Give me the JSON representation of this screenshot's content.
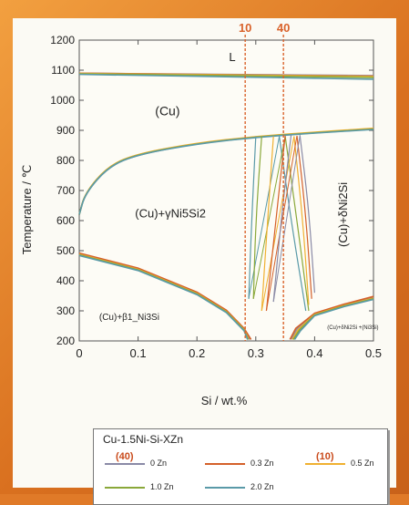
{
  "chart_data": {
    "type": "line",
    "xlabel": "Si / wt.%",
    "ylabel": "Temperature / ℃",
    "xlim": [
      0,
      0.5
    ],
    "ylim": [
      200,
      1200
    ],
    "x_ticks": [
      "0",
      "0.1",
      "0.2",
      "0.3",
      "0.4",
      "0.5"
    ],
    "y_ticks": [
      "200",
      "300",
      "400",
      "500",
      "600",
      "700",
      "800",
      "900",
      "1000",
      "1100",
      "1200"
    ],
    "vertical_markers": [
      {
        "label": "10",
        "x": 0.282
      },
      {
        "label": "40",
        "x": 0.347
      }
    ],
    "region_labels": [
      {
        "text": "L"
      },
      {
        "text": "(Cu)"
      },
      {
        "text": "(Cu)+γNi5Si2"
      },
      {
        "text": "(Cu)+δNi2Si"
      },
      {
        "text": "(Cu)+β1_Ni3Si"
      },
      {
        "text": "(Cu)+δNi2Si +(Ni3Si)"
      }
    ],
    "legend": {
      "title": "Cu-1.5Ni-Si-XZn",
      "placement": "bottom"
    },
    "series": [
      {
        "name": "0 Zn",
        "marker": "(40)",
        "color": "#8a8aa6",
        "liquidus": [
          [
            0,
            1090
          ],
          [
            0.5,
            1082
          ]
        ],
        "solvus": [
          [
            0,
            620
          ],
          [
            0.01,
            690
          ],
          [
            0.05,
            780
          ],
          [
            0.1,
            820
          ],
          [
            0.2,
            856
          ],
          [
            0.3,
            878
          ],
          [
            0.4,
            892
          ],
          [
            0.5,
            905
          ]
        ],
        "lower_left": [
          [
            0,
            490
          ],
          [
            0.1,
            440
          ],
          [
            0.2,
            360
          ],
          [
            0.25,
            300
          ],
          [
            0.28,
            240
          ],
          [
            0.29,
            205
          ]
        ],
        "lower_right": [
          [
            0.36,
            205
          ],
          [
            0.37,
            240
          ],
          [
            0.4,
            290
          ],
          [
            0.45,
            320
          ],
          [
            0.5,
            345
          ]
        ]
      },
      {
        "name": "0.3 Zn",
        "color": "#d4602a",
        "liquidus": [
          [
            0,
            1090
          ],
          [
            0.5,
            1080
          ]
        ],
        "solvus": [
          [
            0,
            620
          ],
          [
            0.01,
            692
          ],
          [
            0.05,
            782
          ],
          [
            0.1,
            822
          ],
          [
            0.2,
            857
          ],
          [
            0.3,
            879
          ],
          [
            0.4,
            893
          ],
          [
            0.5,
            906
          ]
        ],
        "lower_left": [
          [
            0,
            492
          ],
          [
            0.1,
            442
          ],
          [
            0.2,
            362
          ],
          [
            0.25,
            302
          ],
          [
            0.28,
            242
          ],
          [
            0.292,
            205
          ]
        ],
        "lower_right": [
          [
            0.358,
            205
          ],
          [
            0.368,
            242
          ],
          [
            0.4,
            292
          ],
          [
            0.45,
            322
          ],
          [
            0.5,
            348
          ]
        ]
      },
      {
        "name": "0.5 Zn",
        "marker": "(10)",
        "color": "#f0b030",
        "liquidus": [
          [
            0,
            1089
          ],
          [
            0.5,
            1079
          ]
        ],
        "solvus": [
          [
            0,
            620
          ],
          [
            0.01,
            693
          ],
          [
            0.05,
            783
          ],
          [
            0.1,
            823
          ],
          [
            0.2,
            858
          ],
          [
            0.3,
            880
          ],
          [
            0.4,
            894
          ],
          [
            0.5,
            907
          ]
        ],
        "lower_left": [
          [
            0,
            488
          ],
          [
            0.1,
            438
          ],
          [
            0.2,
            358
          ],
          [
            0.25,
            298
          ],
          [
            0.28,
            238
          ],
          [
            0.288,
            205
          ]
        ],
        "lower_right": [
          [
            0.362,
            205
          ],
          [
            0.372,
            238
          ],
          [
            0.4,
            288
          ],
          [
            0.45,
            318
          ],
          [
            0.5,
            342
          ]
        ]
      },
      {
        "name": "1.0 Zn",
        "color": "#8aa83a",
        "liquidus": [
          [
            0,
            1088
          ],
          [
            0.5,
            1076
          ]
        ],
        "solvus": [
          [
            0,
            620
          ],
          [
            0.01,
            691
          ],
          [
            0.05,
            781
          ],
          [
            0.1,
            821
          ],
          [
            0.2,
            856
          ],
          [
            0.3,
            878
          ],
          [
            0.4,
            892
          ],
          [
            0.5,
            904
          ]
        ],
        "lower_left": [
          [
            0,
            486
          ],
          [
            0.1,
            436
          ],
          [
            0.2,
            356
          ],
          [
            0.25,
            296
          ],
          [
            0.28,
            236
          ],
          [
            0.287,
            205
          ]
        ],
        "lower_right": [
          [
            0.364,
            205
          ],
          [
            0.374,
            236
          ],
          [
            0.4,
            286
          ],
          [
            0.45,
            316
          ],
          [
            0.5,
            340
          ]
        ]
      },
      {
        "name": "2.0 Zn",
        "color": "#5a9aa8",
        "liquidus": [
          [
            0,
            1086
          ],
          [
            0.5,
            1070
          ]
        ],
        "solvus": [
          [
            0,
            620
          ],
          [
            0.01,
            690
          ],
          [
            0.05,
            780
          ],
          [
            0.1,
            820
          ],
          [
            0.2,
            855
          ],
          [
            0.3,
            877
          ],
          [
            0.4,
            891
          ],
          [
            0.5,
            903
          ]
        ],
        "lower_left": [
          [
            0,
            484
          ],
          [
            0.1,
            434
          ],
          [
            0.2,
            354
          ],
          [
            0.25,
            294
          ],
          [
            0.28,
            234
          ],
          [
            0.286,
            205
          ]
        ],
        "lower_right": [
          [
            0.366,
            205
          ],
          [
            0.376,
            234
          ],
          [
            0.4,
            284
          ],
          [
            0.45,
            314
          ],
          [
            0.5,
            338
          ]
        ]
      }
    ],
    "lens_curves": [
      {
        "color": "#5a9aa8",
        "pts": [
          [
            0.3,
            880
          ],
          [
            0.293,
            600
          ],
          [
            0.288,
            340
          ],
          [
            0.34,
            880
          ],
          [
            0.36,
            600
          ],
          [
            0.385,
            300
          ]
        ]
      },
      {
        "color": "#8aa83a",
        "pts": [
          [
            0.31,
            880
          ],
          [
            0.3,
            600
          ],
          [
            0.296,
            340
          ],
          [
            0.35,
            880
          ],
          [
            0.37,
            600
          ],
          [
            0.39,
            300
          ]
        ]
      },
      {
        "color": "#f0b030",
        "pts": [
          [
            0.33,
            880
          ],
          [
            0.32,
            600
          ],
          [
            0.31,
            300
          ],
          [
            0.365,
            880
          ],
          [
            0.38,
            600
          ],
          [
            0.39,
            320
          ]
        ]
      },
      {
        "color": "#d4602a",
        "pts": [
          [
            0.35,
            882
          ],
          [
            0.335,
            620
          ],
          [
            0.318,
            300
          ],
          [
            0.37,
            882
          ],
          [
            0.385,
            620
          ],
          [
            0.395,
            340
          ]
        ]
      },
      {
        "color": "#8a8aa6",
        "pts": [
          [
            0.36,
            884
          ],
          [
            0.345,
            640
          ],
          [
            0.33,
            330
          ],
          [
            0.375,
            884
          ],
          [
            0.39,
            640
          ],
          [
            0.4,
            360
          ]
        ]
      }
    ]
  }
}
